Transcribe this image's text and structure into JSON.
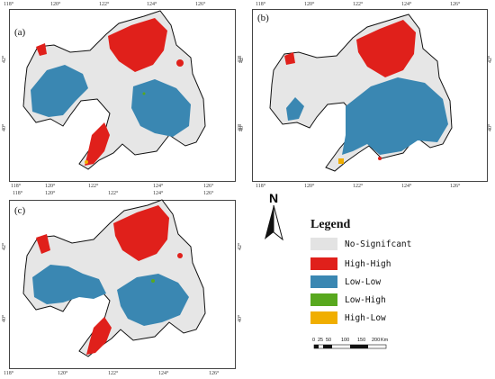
{
  "panels": [
    {
      "label": "(a)",
      "top_ticks": [
        "118°",
        "120°",
        "122°",
        "124°",
        "126°"
      ],
      "bottom_ticks": [
        "118°",
        "120°",
        "122°",
        "124°",
        "126°"
      ],
      "left_ticks": [
        "42°",
        "40°"
      ],
      "right_ticks": [
        "42°",
        "40°"
      ]
    },
    {
      "label": "(b)",
      "top_ticks": [
        "118°",
        "120°",
        "122°",
        "124°",
        "126°"
      ],
      "bottom_ticks": [
        "118°",
        "120°",
        "122°",
        "124°",
        "126°"
      ],
      "left_ticks": [
        "42°",
        "40°"
      ],
      "right_ticks": [
        "42°",
        "40°"
      ]
    },
    {
      "label": "(c)",
      "top_ticks": [
        "118°",
        "120°",
        "122°",
        "124°",
        "126°"
      ],
      "bottom_ticks": [
        "118°",
        "120°",
        "122°",
        "124°",
        "126°"
      ],
      "left_ticks": [
        "42°",
        "40°"
      ],
      "right_ticks": [
        "42°",
        "40°"
      ]
    }
  ],
  "north_arrow": {
    "letter": "N"
  },
  "legend": {
    "title": "Legend",
    "items": [
      {
        "label": "No-Signifcant",
        "color": "#e3e3e3"
      },
      {
        "label": "High-High",
        "color": "#e0201b"
      },
      {
        "label": "Low-Low",
        "color": "#3a87b2"
      },
      {
        "label": "Low-High",
        "color": "#58a81e"
      },
      {
        "label": "High-Low",
        "color": "#f0ae00"
      }
    ]
  },
  "scale_bar": {
    "labels": [
      "0",
      "25",
      "50",
      "100",
      "150",
      "200"
    ],
    "unit": "Km"
  }
}
